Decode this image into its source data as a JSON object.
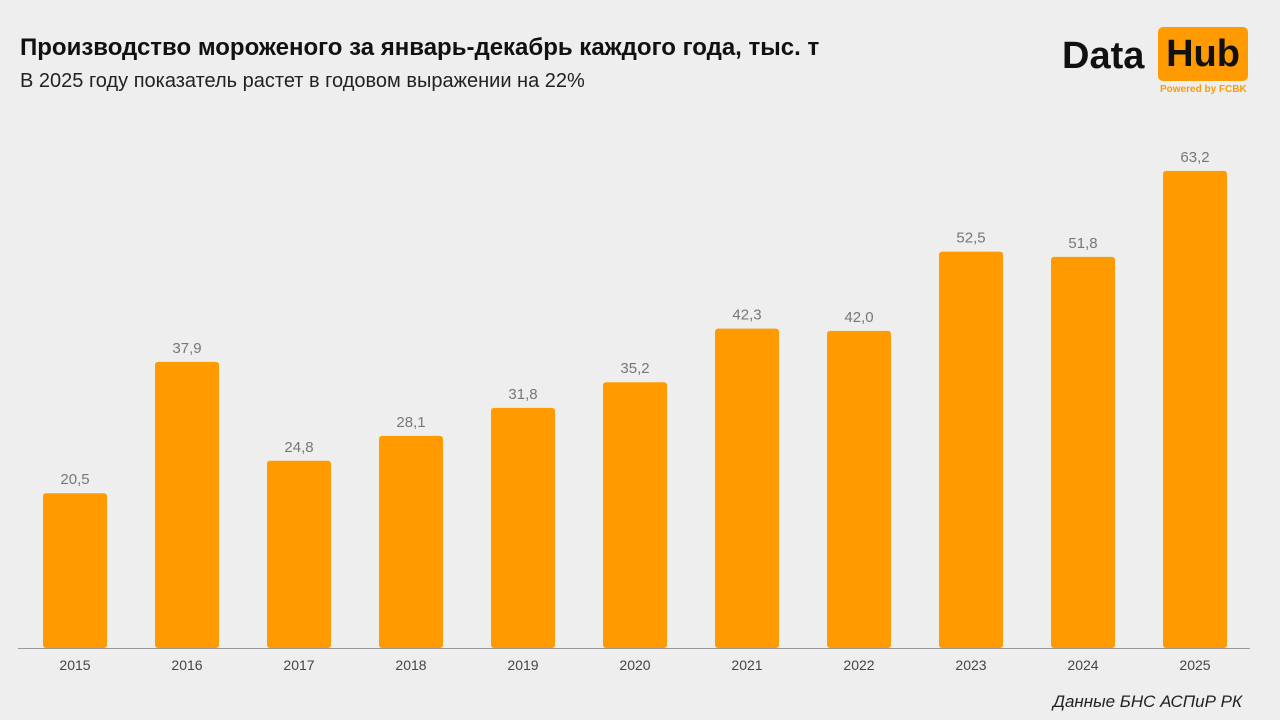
{
  "chart_data": {
    "type": "bar",
    "title": "Производство мороженого за январь-декабрь каждого года, тыс. т",
    "subtitle": "В 2025 году показатель растет в годовом выражении на 22%",
    "categories": [
      "2015",
      "2016",
      "2017",
      "2018",
      "2019",
      "2020",
      "2021",
      "2022",
      "2023",
      "2024",
      "2025"
    ],
    "values": [
      20.5,
      37.9,
      24.8,
      28.1,
      31.8,
      35.2,
      42.3,
      42.0,
      52.5,
      51.8,
      63.2
    ],
    "labels": [
      "20,5",
      "37,9",
      "24,8",
      "28,1",
      "31,8",
      "35,2",
      "42,3",
      "42,0",
      "52,5",
      "51,8",
      "63,2"
    ],
    "xlabel": "",
    "ylabel": "",
    "ylim": [
      0,
      66
    ],
    "grid": false,
    "color": "#ff9b00"
  },
  "logo": {
    "left": "Data",
    "right": "Hub",
    "tagline": "Powered by FCBK"
  },
  "source": "Данные БНС АСПиР РК"
}
